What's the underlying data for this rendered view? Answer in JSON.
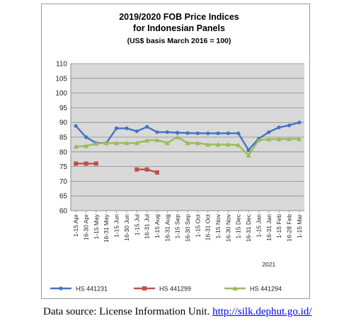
{
  "chart_data": {
    "type": "line",
    "title": [
      "2019/2020 FOB Price Indices",
      "for Indonesian Panels",
      "(US$ basis March 2016 = 100)"
    ],
    "xlabel": "",
    "ylabel": "",
    "ylim": [
      60,
      110
    ],
    "yticks": [
      60,
      65,
      70,
      75,
      80,
      85,
      90,
      95,
      100,
      105,
      110
    ],
    "grid": true,
    "legend_position": "bottom",
    "year_marker": "2021",
    "categories": [
      "1-15 Apr",
      "16-30 Apr",
      "1-15 May",
      "16-31 May",
      "1-15 Jun",
      "16-30 Jun",
      "1-15 Jul",
      "16-31 Jul",
      "1-15 Aug",
      "16-31 Aug",
      "1-15 Sep",
      "16-30 Sep",
      "1-15 Oct",
      "16-31 Oct",
      "1-15 Nov",
      "16-30 Nov",
      "1-15 Dec",
      "16-31 Dec",
      "1-15 Jan",
      "16-31 Jan",
      "1-15 Feb",
      "16-28 Feb",
      "1-15 Mar"
    ],
    "series": [
      {
        "name": "HS 441231",
        "color": "#4472c4",
        "marker": "diamond",
        "values": [
          88.8,
          85,
          83,
          83,
          88,
          88,
          87,
          88.5,
          86.7,
          86.7,
          86.5,
          86.4,
          86.3,
          86.3,
          86.3,
          86.3,
          86.3,
          80.6,
          84.5,
          86.7,
          88.3,
          89,
          90
        ]
      },
      {
        "name": "HS 441299",
        "color": "#c0504d",
        "marker": "square",
        "values": [
          76,
          76,
          76,
          null,
          null,
          null,
          74,
          74,
          73,
          null,
          null,
          null,
          null,
          null,
          null,
          null,
          null,
          null,
          null,
          null,
          null,
          null,
          null
        ]
      },
      {
        "name": "HS 441294",
        "color": "#9bbb59",
        "marker": "triangle",
        "values": [
          81.8,
          82,
          82.8,
          83,
          83,
          83,
          83,
          83.9,
          84,
          83,
          85,
          83,
          83,
          82.5,
          82.5,
          82.5,
          82.3,
          78.8,
          84,
          84.3,
          84.3,
          84.4,
          84.4
        ]
      }
    ]
  },
  "footer": {
    "source_prefix": "Data source: License Information Unit. ",
    "source_link": "http://silk.dephut.go.id/"
  }
}
